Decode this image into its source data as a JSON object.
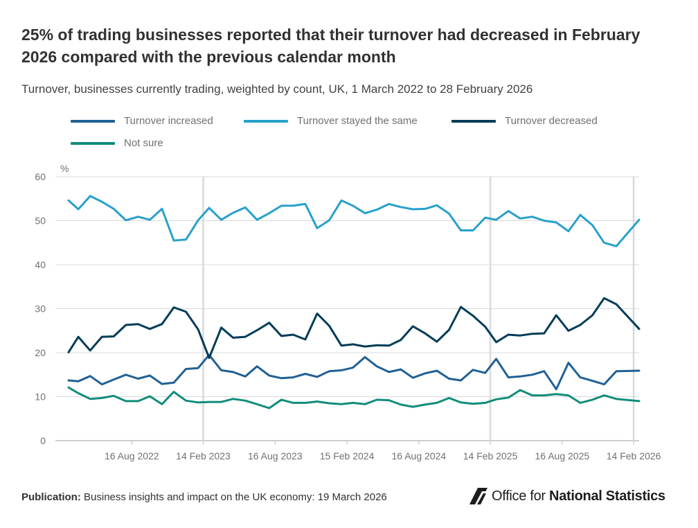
{
  "header": {
    "title": "25% of trading businesses reported that their turnover had decreased in February 2026 compared with the previous calendar month",
    "subtitle": "Turnover, businesses currently trading, weighted by count, UK, 1 March 2022 to 28 February 2026"
  },
  "footer": {
    "publication_label": "Publication:",
    "publication_text": "Business insights and impact on the UK economy: 19 March 2026",
    "logo_text_regular": "Office for",
    "logo_text_bold": "National Statistics"
  },
  "colors": {
    "increased": "#206095",
    "same": "#27a0cc",
    "decreased": "#003c57",
    "not_sure": "#118c7b",
    "grid": "#d9d9d9",
    "axis_text": "#707071"
  },
  "chart_data": {
    "type": "line",
    "ylabel": "%",
    "ylim": [
      0,
      60
    ],
    "yticks": [
      0,
      10,
      20,
      30,
      40,
      50,
      60
    ],
    "xlim": [
      "2022-03-01",
      "2026-02-28"
    ],
    "xticks": [
      "2022-08-16",
      "2023-02-14",
      "2023-08-16",
      "2024-02-15",
      "2024-08-16",
      "2025-02-14",
      "2025-08-16",
      "2026-02-14"
    ],
    "xtick_labels": [
      "16 Aug 2022",
      "14 Feb 2023",
      "16 Aug 2023",
      "15 Feb 2024",
      "16 Aug 2024",
      "14 Feb 2025",
      "16 Aug 2025",
      "14 Feb 2026"
    ],
    "emphasized_gridlines": [
      "2023-02-14",
      "2025-02-14",
      "2026-02-14"
    ],
    "legend_position": "top",
    "series": [
      {
        "name": "Turnover increased",
        "color_key": "increased",
        "points": [
          [
            "2022-03-08",
            13.7
          ],
          [
            "2022-04-02",
            13.5
          ],
          [
            "2022-05-02",
            14.7
          ],
          [
            "2022-06-01",
            12.8
          ],
          [
            "2022-07-01",
            13.9
          ],
          [
            "2022-08-01",
            15.0
          ],
          [
            "2022-09-01",
            14.1
          ],
          [
            "2022-10-01",
            14.8
          ],
          [
            "2022-11-01",
            12.9
          ],
          [
            "2022-12-01",
            13.2
          ],
          [
            "2023-01-01",
            16.3
          ],
          [
            "2023-02-01",
            16.5
          ],
          [
            "2023-03-01",
            19.5
          ],
          [
            "2023-04-01",
            16.0
          ],
          [
            "2023-05-01",
            15.6
          ],
          [
            "2023-06-01",
            14.6
          ],
          [
            "2023-07-01",
            16.9
          ],
          [
            "2023-08-01",
            14.8
          ],
          [
            "2023-09-01",
            14.2
          ],
          [
            "2023-10-01",
            14.4
          ],
          [
            "2023-11-01",
            15.2
          ],
          [
            "2023-12-01",
            14.5
          ],
          [
            "2024-01-01",
            15.8
          ],
          [
            "2024-02-01",
            16.0
          ],
          [
            "2024-03-01",
            16.6
          ],
          [
            "2024-04-01",
            19.0
          ],
          [
            "2024-05-01",
            16.9
          ],
          [
            "2024-06-01",
            15.6
          ],
          [
            "2024-07-01",
            16.2
          ],
          [
            "2024-08-01",
            14.3
          ],
          [
            "2024-09-01",
            15.3
          ],
          [
            "2024-10-01",
            15.9
          ],
          [
            "2024-11-01",
            14.1
          ],
          [
            "2024-12-01",
            13.7
          ],
          [
            "2025-01-01",
            16.1
          ],
          [
            "2025-02-01",
            15.4
          ],
          [
            "2025-03-01",
            18.6
          ],
          [
            "2025-04-01",
            14.4
          ],
          [
            "2025-05-01",
            14.6
          ],
          [
            "2025-06-01",
            15.0
          ],
          [
            "2025-07-01",
            15.8
          ],
          [
            "2025-08-01",
            11.7
          ],
          [
            "2025-09-01",
            17.7
          ],
          [
            "2025-10-01",
            14.4
          ],
          [
            "2025-11-01",
            13.6
          ],
          [
            "2025-12-01",
            12.8
          ],
          [
            "2026-01-01",
            15.8
          ],
          [
            "2026-02-28",
            15.9
          ]
        ]
      },
      {
        "name": "Turnover stayed the same",
        "color_key": "same",
        "points": [
          [
            "2022-03-08",
            54.6
          ],
          [
            "2022-04-02",
            52.6
          ],
          [
            "2022-05-02",
            55.6
          ],
          [
            "2022-06-01",
            54.3
          ],
          [
            "2022-07-01",
            52.7
          ],
          [
            "2022-08-01",
            50.1
          ],
          [
            "2022-09-01",
            50.9
          ],
          [
            "2022-10-01",
            50.2
          ],
          [
            "2022-11-01",
            52.7
          ],
          [
            "2022-12-01",
            45.5
          ],
          [
            "2023-01-01",
            45.7
          ],
          [
            "2023-02-01",
            50.1
          ],
          [
            "2023-03-01",
            52.9
          ],
          [
            "2023-04-01",
            50.2
          ],
          [
            "2023-05-01",
            51.8
          ],
          [
            "2023-06-01",
            53.0
          ],
          [
            "2023-07-01",
            50.2
          ],
          [
            "2023-08-01",
            51.7
          ],
          [
            "2023-09-01",
            53.4
          ],
          [
            "2023-10-01",
            53.4
          ],
          [
            "2023-11-01",
            53.8
          ],
          [
            "2023-12-01",
            48.3
          ],
          [
            "2024-01-01",
            50.1
          ],
          [
            "2024-02-01",
            54.6
          ],
          [
            "2024-03-01",
            53.4
          ],
          [
            "2024-04-01",
            51.7
          ],
          [
            "2024-05-01",
            52.5
          ],
          [
            "2024-06-01",
            53.8
          ],
          [
            "2024-07-01",
            53.1
          ],
          [
            "2024-08-01",
            52.6
          ],
          [
            "2024-09-01",
            52.7
          ],
          [
            "2024-10-01",
            53.5
          ],
          [
            "2024-11-01",
            51.6
          ],
          [
            "2024-12-01",
            47.8
          ],
          [
            "2025-01-01",
            47.8
          ],
          [
            "2025-02-01",
            50.7
          ],
          [
            "2025-03-01",
            50.2
          ],
          [
            "2025-04-01",
            52.2
          ],
          [
            "2025-05-01",
            50.5
          ],
          [
            "2025-06-01",
            50.9
          ],
          [
            "2025-07-01",
            50.0
          ],
          [
            "2025-08-01",
            49.6
          ],
          [
            "2025-09-01",
            47.6
          ],
          [
            "2025-10-01",
            51.3
          ],
          [
            "2025-11-01",
            49.0
          ],
          [
            "2025-12-01",
            45.0
          ],
          [
            "2026-01-01",
            44.2
          ],
          [
            "2026-02-28",
            50.2
          ]
        ]
      },
      {
        "name": "Turnover decreased",
        "color_key": "decreased",
        "points": [
          [
            "2022-03-08",
            20.1
          ],
          [
            "2022-04-02",
            23.6
          ],
          [
            "2022-05-02",
            20.5
          ],
          [
            "2022-06-01",
            23.6
          ],
          [
            "2022-07-01",
            23.7
          ],
          [
            "2022-08-01",
            26.3
          ],
          [
            "2022-09-01",
            26.5
          ],
          [
            "2022-10-01",
            25.4
          ],
          [
            "2022-11-01",
            26.5
          ],
          [
            "2022-12-01",
            30.3
          ],
          [
            "2023-01-01",
            29.3
          ],
          [
            "2023-02-01",
            25.3
          ],
          [
            "2023-03-01",
            18.8
          ],
          [
            "2023-04-01",
            25.7
          ],
          [
            "2023-05-01",
            23.4
          ],
          [
            "2023-06-01",
            23.6
          ],
          [
            "2023-07-01",
            25.1
          ],
          [
            "2023-08-01",
            26.8
          ],
          [
            "2023-09-01",
            23.8
          ],
          [
            "2023-10-01",
            24.1
          ],
          [
            "2023-11-01",
            23.0
          ],
          [
            "2023-12-01",
            28.9
          ],
          [
            "2024-01-01",
            26.1
          ],
          [
            "2024-02-01",
            21.6
          ],
          [
            "2024-03-01",
            21.9
          ],
          [
            "2024-04-01",
            21.4
          ],
          [
            "2024-05-01",
            21.7
          ],
          [
            "2024-06-01",
            21.6
          ],
          [
            "2024-07-01",
            22.9
          ],
          [
            "2024-08-01",
            26.0
          ],
          [
            "2024-09-01",
            24.4
          ],
          [
            "2024-10-01",
            22.5
          ],
          [
            "2024-11-01",
            25.2
          ],
          [
            "2024-12-01",
            30.4
          ],
          [
            "2025-01-01",
            28.4
          ],
          [
            "2025-02-01",
            25.9
          ],
          [
            "2025-03-01",
            22.4
          ],
          [
            "2025-04-01",
            24.1
          ],
          [
            "2025-05-01",
            23.9
          ],
          [
            "2025-06-01",
            24.3
          ],
          [
            "2025-07-01",
            24.4
          ],
          [
            "2025-08-01",
            28.5
          ],
          [
            "2025-09-01",
            25.0
          ],
          [
            "2025-10-01",
            26.3
          ],
          [
            "2025-11-01",
            28.5
          ],
          [
            "2025-12-01",
            32.4
          ],
          [
            "2026-01-01",
            31.0
          ],
          [
            "2026-02-28",
            25.4
          ]
        ]
      },
      {
        "name": "Not sure",
        "color_key": "not_sure",
        "points": [
          [
            "2022-03-08",
            12.1
          ],
          [
            "2022-04-02",
            10.8
          ],
          [
            "2022-05-02",
            9.5
          ],
          [
            "2022-06-01",
            9.7
          ],
          [
            "2022-07-01",
            10.2
          ],
          [
            "2022-08-01",
            9.0
          ],
          [
            "2022-09-01",
            9.0
          ],
          [
            "2022-10-01",
            10.1
          ],
          [
            "2022-11-01",
            8.3
          ],
          [
            "2022-12-01",
            11.1
          ],
          [
            "2023-01-01",
            9.1
          ],
          [
            "2023-02-01",
            8.7
          ],
          [
            "2023-03-01",
            8.8
          ],
          [
            "2023-04-01",
            8.8
          ],
          [
            "2023-05-01",
            9.5
          ],
          [
            "2023-06-01",
            9.1
          ],
          [
            "2023-07-01",
            8.3
          ],
          [
            "2023-08-01",
            7.4
          ],
          [
            "2023-09-01",
            9.3
          ],
          [
            "2023-10-01",
            8.6
          ],
          [
            "2023-11-01",
            8.6
          ],
          [
            "2023-12-01",
            8.9
          ],
          [
            "2024-01-01",
            8.5
          ],
          [
            "2024-02-01",
            8.3
          ],
          [
            "2024-03-01",
            8.6
          ],
          [
            "2024-04-01",
            8.3
          ],
          [
            "2024-05-01",
            9.3
          ],
          [
            "2024-06-01",
            9.2
          ],
          [
            "2024-07-01",
            8.2
          ],
          [
            "2024-08-01",
            7.7
          ],
          [
            "2024-09-01",
            8.2
          ],
          [
            "2024-10-01",
            8.6
          ],
          [
            "2024-11-01",
            9.7
          ],
          [
            "2024-12-01",
            8.7
          ],
          [
            "2025-01-01",
            8.4
          ],
          [
            "2025-02-01",
            8.6
          ],
          [
            "2025-03-01",
            9.4
          ],
          [
            "2025-04-01",
            9.8
          ],
          [
            "2025-05-01",
            11.5
          ],
          [
            "2025-06-01",
            10.3
          ],
          [
            "2025-07-01",
            10.3
          ],
          [
            "2025-08-01",
            10.6
          ],
          [
            "2025-09-01",
            10.3
          ],
          [
            "2025-10-01",
            8.6
          ],
          [
            "2025-11-01",
            9.3
          ],
          [
            "2025-12-01",
            10.3
          ],
          [
            "2026-01-01",
            9.5
          ],
          [
            "2026-02-28",
            9.0
          ]
        ]
      }
    ]
  }
}
